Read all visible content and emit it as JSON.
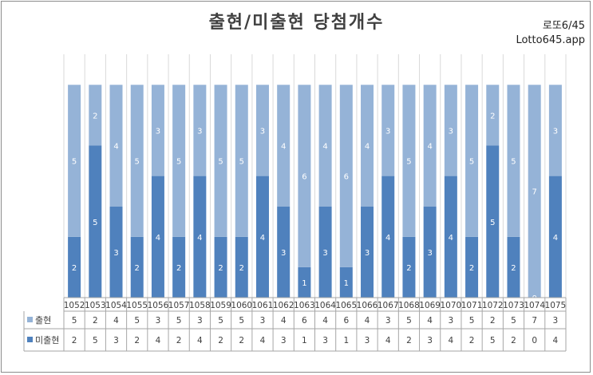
{
  "header": {
    "title": "출현/미출현 당첨개수",
    "brand_line1": "로또6/45",
    "brand_line2": "Lotto645.app"
  },
  "chart_data": {
    "type": "bar",
    "stacked": true,
    "title": "출현/미출현 당첨개수",
    "categories": [
      "1052",
      "1053",
      "1054",
      "1055",
      "1056",
      "1057",
      "1058",
      "1059",
      "1060",
      "1061",
      "1062",
      "1063",
      "1064",
      "1065",
      "1066",
      "1067",
      "1068",
      "1069",
      "1070",
      "1071",
      "1072",
      "1073",
      "1074",
      "1075"
    ],
    "series": [
      {
        "name": "미출현",
        "color": "#4f81bd",
        "values": [
          2,
          5,
          3,
          2,
          4,
          2,
          4,
          2,
          2,
          4,
          3,
          1,
          3,
          1,
          3,
          4,
          2,
          3,
          4,
          2,
          5,
          2,
          0,
          4
        ]
      },
      {
        "name": "출현",
        "color": "#95b3d7",
        "values": [
          5,
          2,
          4,
          5,
          3,
          5,
          3,
          5,
          5,
          3,
          4,
          6,
          4,
          6,
          4,
          3,
          5,
          4,
          3,
          5,
          2,
          5,
          7,
          3
        ]
      }
    ],
    "ylim": [
      0,
      8
    ],
    "grid": "vertical",
    "legend": "table-left",
    "data_table": true
  }
}
